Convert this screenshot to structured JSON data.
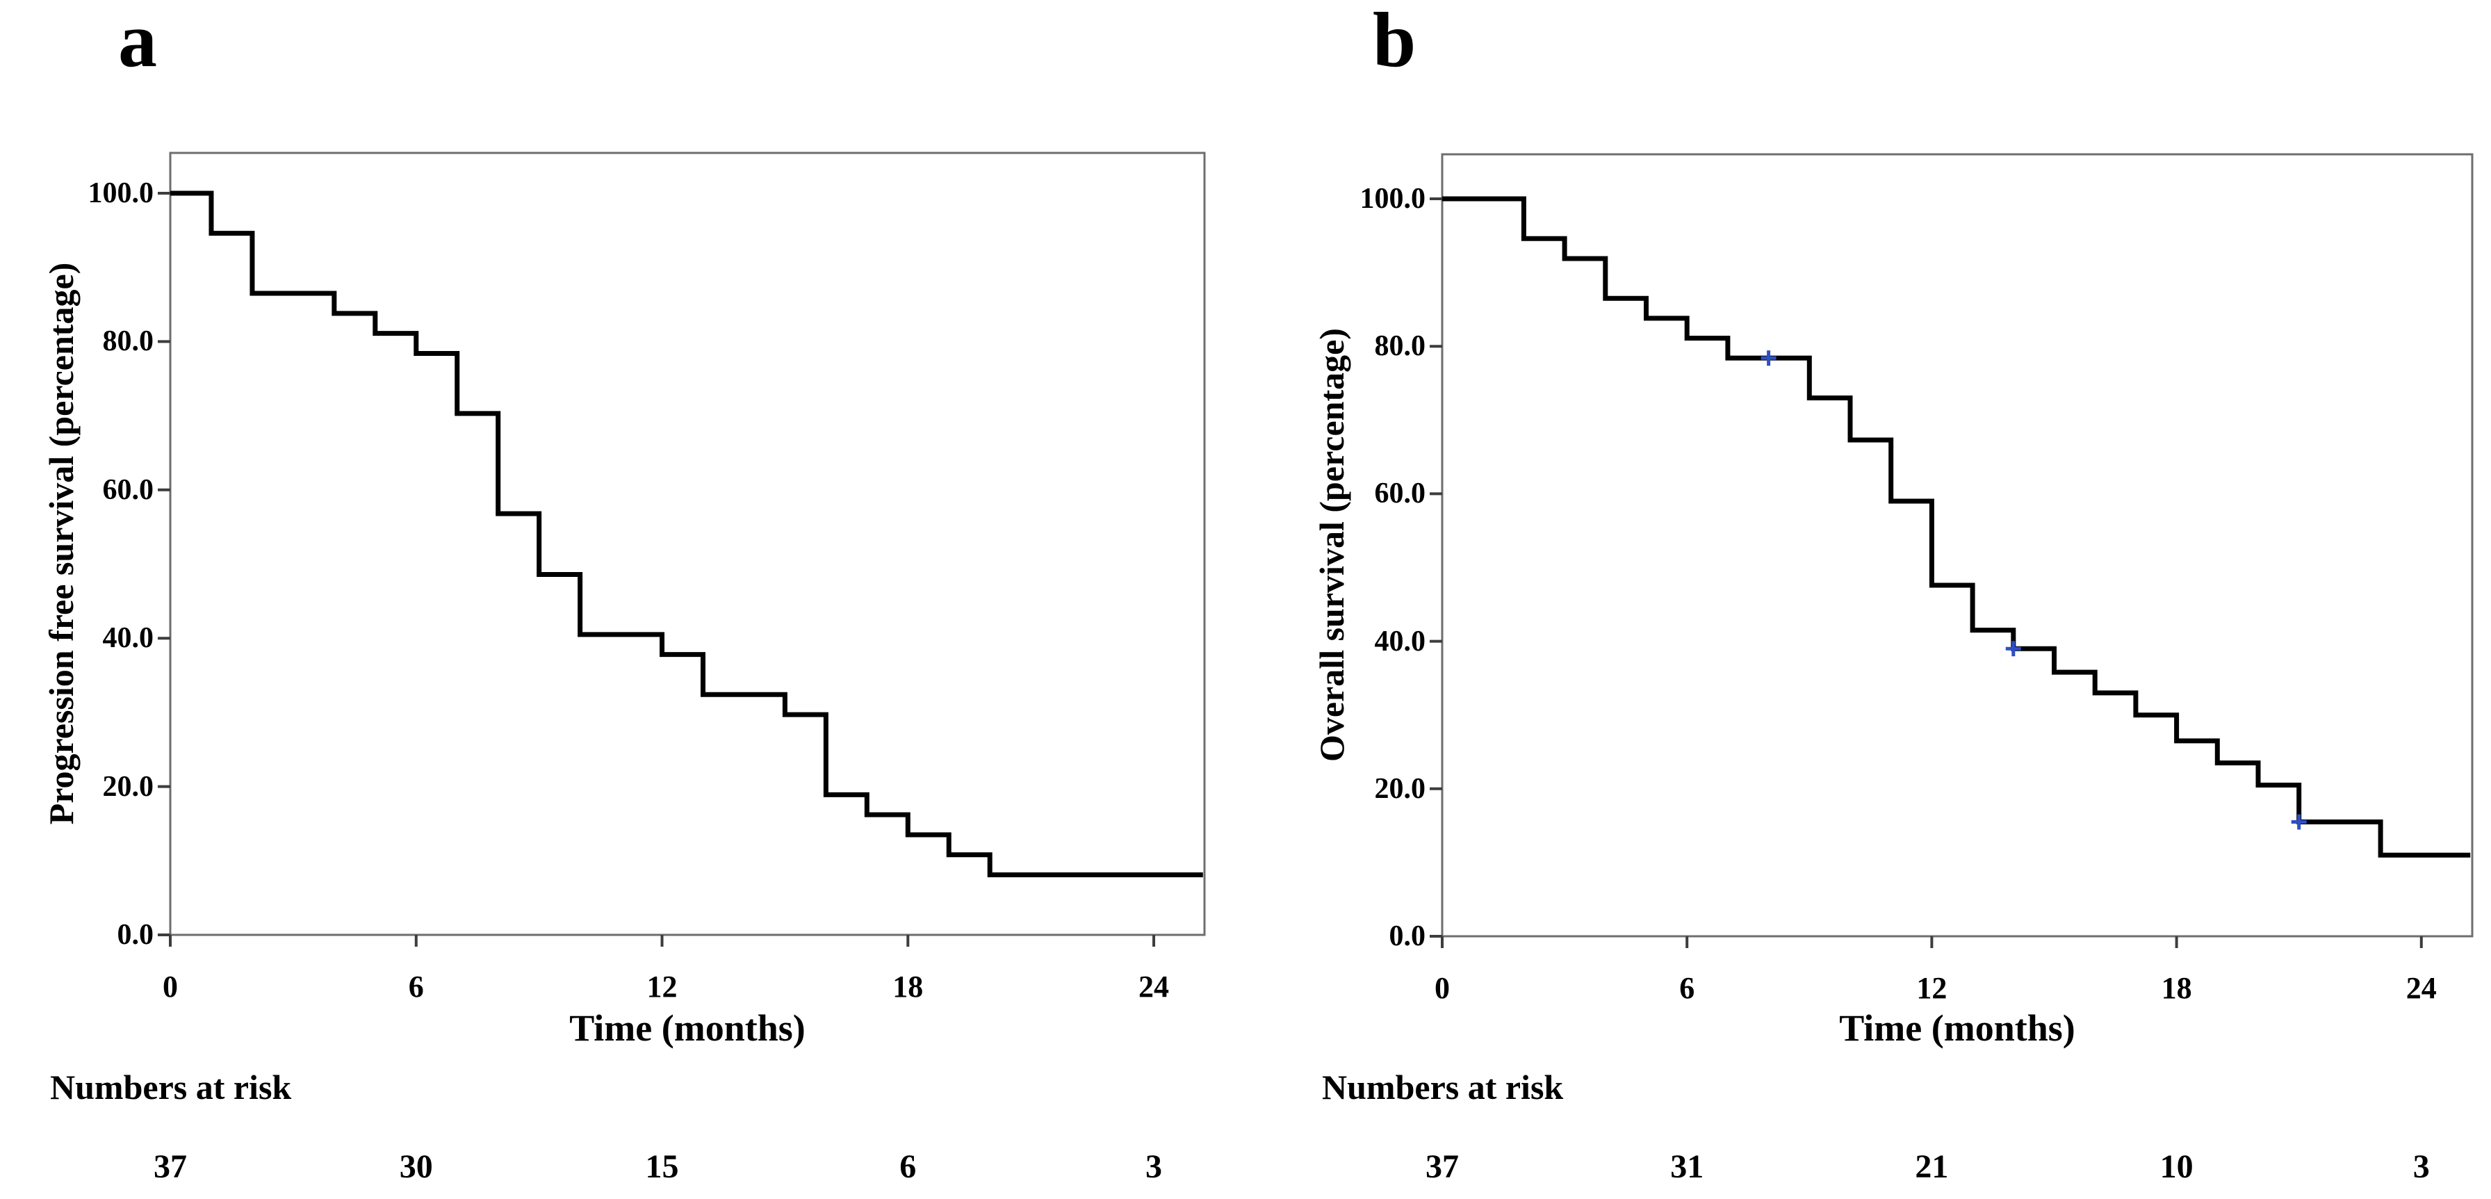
{
  "figure": {
    "panels": [
      {
        "letter": "a",
        "ylabel": "Progression free survival (percentage)",
        "xlabel": "Time (months)",
        "y_tick_labels": [
          "100.0",
          "80.0",
          "60.0",
          "40.0",
          "20.0",
          "0.0"
        ],
        "x_tick_labels": [
          "0",
          "6",
          "12",
          "18",
          "24"
        ],
        "numbers_at_risk_label": "Numbers at risk",
        "numbers_at_risk": [
          "37",
          "30",
          "15",
          "6",
          "3"
        ]
      },
      {
        "letter": "b",
        "ylabel": "Overall survival (percentage)",
        "xlabel": "Time (months)",
        "y_tick_labels": [
          "100.0",
          "80.0",
          "60.0",
          "40.0",
          "20.0",
          "0.0"
        ],
        "x_tick_labels": [
          "0",
          "6",
          "12",
          "18",
          "24"
        ],
        "numbers_at_risk_label": "Numbers at risk",
        "numbers_at_risk": [
          "37",
          "31",
          "21",
          "10",
          "3"
        ]
      }
    ]
  },
  "chart_data": [
    {
      "type": "line",
      "subtype": "kaplan-meier-step",
      "panel": "a",
      "title": "Progression free survival",
      "xlabel": "Time (months)",
      "ylabel": "Progression free survival (percentage)",
      "xlim": [
        0,
        25.2
      ],
      "ylim": [
        0,
        100
      ],
      "x_ticks": [
        0,
        6,
        12,
        18,
        24
      ],
      "y_ticks": [
        100,
        80,
        60,
        40,
        20,
        0
      ],
      "grid": false,
      "legend": "none",
      "steps": [
        [
          0,
          100
        ],
        [
          1,
          94.6
        ],
        [
          2,
          86.5
        ],
        [
          4,
          83.8
        ],
        [
          5,
          81.1
        ],
        [
          6,
          78.4
        ],
        [
          7,
          70.3
        ],
        [
          8,
          56.8
        ],
        [
          9,
          48.6
        ],
        [
          10,
          40.5
        ],
        [
          12,
          37.8
        ],
        [
          13,
          32.4
        ],
        [
          15,
          29.7
        ],
        [
          16,
          18.9
        ],
        [
          17,
          16.2
        ],
        [
          18,
          13.5
        ],
        [
          19,
          10.8
        ],
        [
          20,
          8.1
        ]
      ],
      "curve_end_x": 25.2,
      "censor_marks": [],
      "numbers_at_risk": {
        "times": [
          0,
          6,
          12,
          18,
          24
        ],
        "counts": [
          37,
          30,
          15,
          6,
          3
        ]
      }
    },
    {
      "type": "line",
      "subtype": "kaplan-meier-step",
      "panel": "b",
      "title": "Overall survival",
      "xlabel": "Time (months)",
      "ylabel": "Overall survival (percentage)",
      "xlim": [
        0,
        25.2
      ],
      "ylim": [
        0,
        100
      ],
      "x_ticks": [
        0,
        6,
        12,
        18,
        24
      ],
      "y_ticks": [
        100,
        80,
        60,
        40,
        20,
        0
      ],
      "grid": false,
      "legend": "none",
      "steps": [
        [
          0,
          100
        ],
        [
          2,
          94.6
        ],
        [
          3,
          91.9
        ],
        [
          4,
          86.5
        ],
        [
          5,
          83.8
        ],
        [
          6,
          81.1
        ],
        [
          7,
          78.4
        ],
        [
          9,
          73.0
        ],
        [
          10,
          67.3
        ],
        [
          11,
          59.0
        ],
        [
          12,
          47.6
        ],
        [
          13,
          41.5
        ],
        [
          14,
          39.0
        ],
        [
          15,
          35.8
        ],
        [
          16,
          33.0
        ],
        [
          17,
          30.0
        ],
        [
          18,
          26.5
        ],
        [
          19,
          23.5
        ],
        [
          20,
          20.5
        ],
        [
          21,
          15.5
        ],
        [
          23,
          11.0
        ]
      ],
      "curve_end_x": 25.2,
      "censor_marks": [
        [
          8,
          78.4
        ],
        [
          14,
          39.0
        ],
        [
          21,
          15.5
        ]
      ],
      "numbers_at_risk": {
        "times": [
          0,
          6,
          12,
          18,
          24
        ],
        "counts": [
          37,
          31,
          21,
          10,
          3
        ]
      }
    }
  ],
  "colors": {
    "curve": "#000000",
    "plot_border": "#6e6e6e",
    "tick": "#3d3d3d",
    "censor": "#2e4fc3",
    "text": "#000000",
    "background": "#ffffff"
  }
}
